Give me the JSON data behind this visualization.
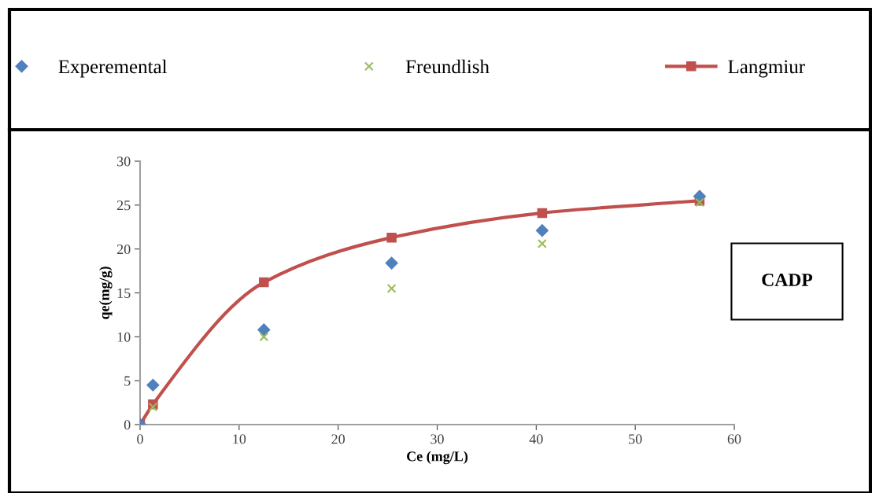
{
  "chart_data": {
    "type": "scatter",
    "xlabel": "Ce (mg/L)",
    "ylabel": "qe(mg/g)",
    "xlim": [
      0,
      60
    ],
    "xticks": [
      0,
      10,
      20,
      30,
      40,
      50,
      60
    ],
    "ylim": [
      0,
      30
    ],
    "yticks": [
      0,
      5,
      10,
      15,
      20,
      25,
      30
    ],
    "grid": false,
    "legend": "top",
    "x": [
      0,
      1.3,
      12.5,
      25.4,
      40.6,
      56.5
    ],
    "series": [
      {
        "name": "Experemental",
        "color": "#4f81bd",
        "marker": "diamond",
        "values": [
          0,
          4.5,
          10.8,
          18.4,
          22.1,
          26.0
        ]
      },
      {
        "name": "Freundlish",
        "color": "#9bbb59",
        "marker": "cross",
        "values": [
          null,
          2.0,
          10.0,
          15.5,
          20.6,
          25.3
        ]
      },
      {
        "name": "Langmiur",
        "type": "line",
        "color": "#c0504d",
        "marker": "square",
        "line_style": "solid",
        "values": [
          0,
          2.3,
          16.2,
          21.3,
          24.1,
          25.5
        ]
      }
    ],
    "annotations": [
      "CADP"
    ]
  }
}
